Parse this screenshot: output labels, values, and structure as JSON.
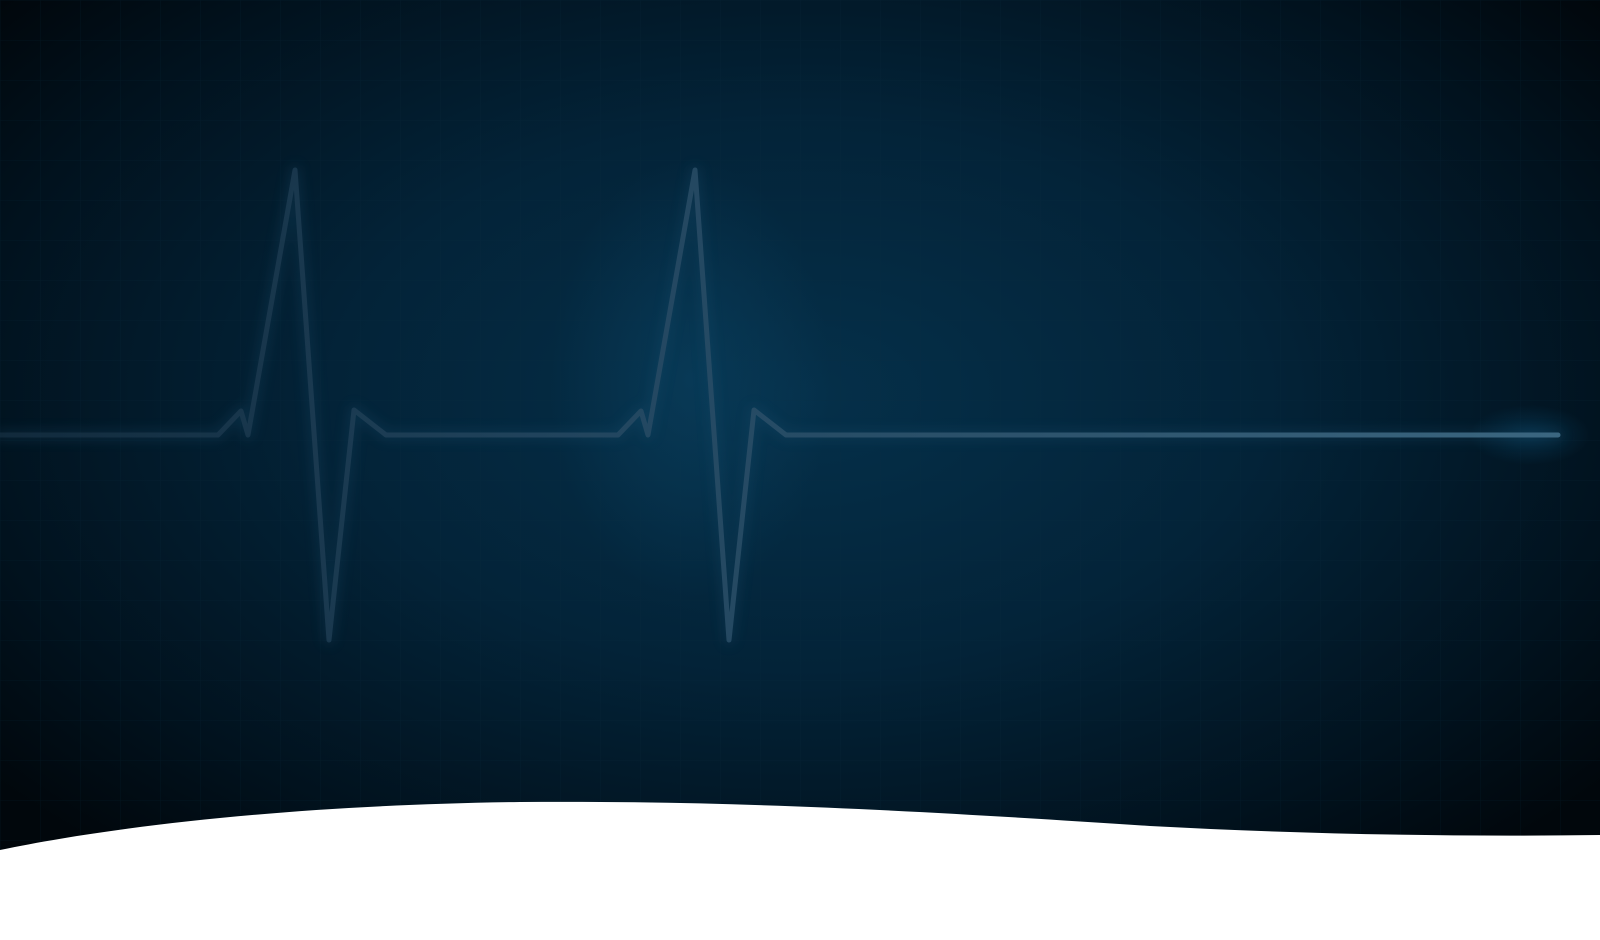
{
  "hero": {
    "background_color": "#021726",
    "edge_color": "#01070c",
    "glow_color": "#05304a",
    "grid_color": "#0b2a3d",
    "trace_color": "#2a4d63",
    "trace_head_color": "#3e6880",
    "bottom_fill_color": "#ffffff",
    "motif": "heartbeat-ecg-line"
  }
}
